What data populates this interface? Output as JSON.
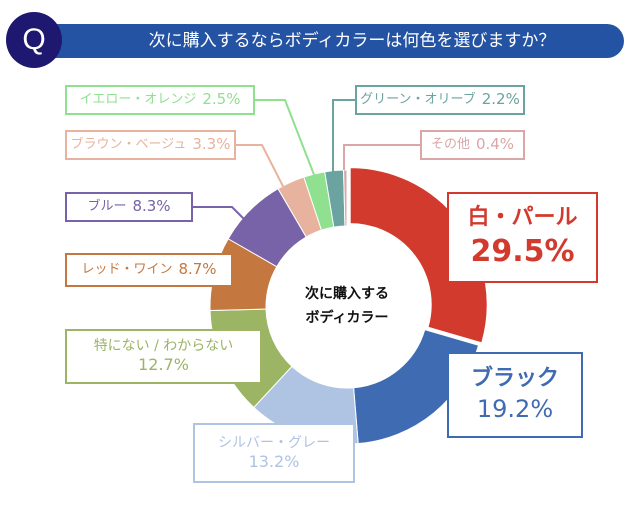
{
  "header": {
    "badge": "Q",
    "title": "次に購入するならボディカラーは何色を選びますか？"
  },
  "chart_data": {
    "type": "pie",
    "variant": "donut",
    "center_label": [
      "次に購入する",
      "ボディカラー"
    ],
    "unit": "%",
    "slices": [
      {
        "label": "白・パール",
        "value": 29.5,
        "color": "#d13a2c",
        "text": "29.5%"
      },
      {
        "label": "ブラック",
        "value": 19.2,
        "color": "#3e6bb1",
        "text": "19.2%"
      },
      {
        "label": "シルバー・グレー",
        "value": 13.2,
        "color": "#afc3e3",
        "text": "13.2%"
      },
      {
        "label": "特にない / わからない",
        "value": 12.7,
        "color": "#9bb564",
        "text": "12.7%"
      },
      {
        "label": "レッド・ワイン",
        "value": 8.7,
        "color": "#c4783f",
        "text": "8.7%"
      },
      {
        "label": "ブルー",
        "value": 8.3,
        "color": "#7862a8",
        "text": "8.3%"
      },
      {
        "label": "ブラウン・ベージュ",
        "value": 3.3,
        "color": "#e8b39e",
        "text": "3.3%"
      },
      {
        "label": "イエロー・オレンジ",
        "value": 2.5,
        "color": "#8fe08f",
        "text": "2.5%"
      },
      {
        "label": "グリーン・オリーブ",
        "value": 2.2,
        "color": "#6aa3a0",
        "text": "2.2%"
      },
      {
        "label": "その他",
        "value": 0.4,
        "color": "#d9a7a7",
        "text": "0.4%"
      }
    ]
  }
}
